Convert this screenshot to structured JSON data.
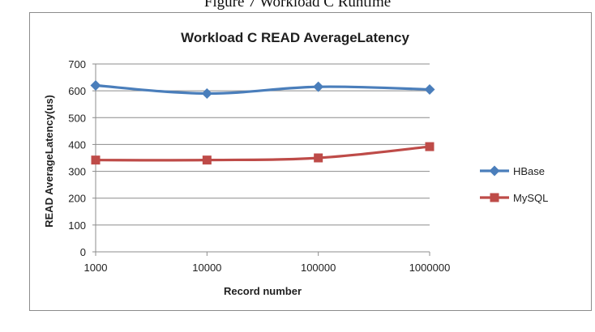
{
  "page": {
    "caption": "Figure 7 Workload C Runtime"
  },
  "chart_data": {
    "type": "line",
    "title": "Workload C READ AverageLatency",
    "xlabel": "Record number",
    "ylabel": "READ AverageLatency(us)",
    "categories": [
      "1000",
      "10000",
      "100000",
      "1000000"
    ],
    "ylim": [
      0,
      700
    ],
    "yticks": [
      0,
      100,
      200,
      300,
      400,
      500,
      600,
      700
    ],
    "grid": true,
    "legend_position": "right",
    "series": [
      {
        "name": "HBase",
        "values": [
          620,
          590,
          615,
          605
        ],
        "color": "#4a7ebb",
        "marker": "diamond"
      },
      {
        "name": "MySQL",
        "values": [
          342,
          342,
          350,
          392
        ],
        "color": "#be4b48",
        "marker": "square"
      }
    ]
  }
}
